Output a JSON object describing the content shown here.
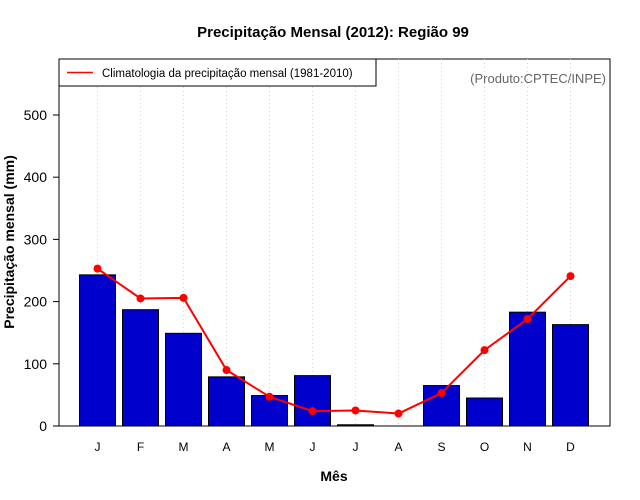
{
  "chart_data": {
    "type": "bar",
    "title": "Precipitação Mensal (2012): Região 99",
    "xlabel": "Mês",
    "ylabel": "Precipitação mensal (mm)",
    "credit": "(Produto:CPTEC/INPE)",
    "categories": [
      "J",
      "F",
      "M",
      "A",
      "M",
      "J",
      "J",
      "A",
      "S",
      "O",
      "N",
      "D"
    ],
    "ylim": [
      0,
      590
    ],
    "yticks": [
      0,
      100,
      200,
      300,
      400,
      500
    ],
    "grid": "vertical dotted",
    "legend_position": "top-left",
    "series": [
      {
        "name": "Precipitação mensal (2012)",
        "kind": "bar",
        "color": "#0000cd",
        "values": [
          243,
          187,
          149,
          79,
          49,
          81,
          2,
          0,
          65,
          45,
          183,
          163
        ]
      },
      {
        "name": "Climatologia da precipitação mensal (1981-2010)",
        "kind": "line",
        "color": "#ff0000",
        "values": [
          253,
          205,
          206,
          90,
          47,
          24,
          25,
          20,
          53,
          122,
          172,
          241
        ]
      }
    ]
  }
}
